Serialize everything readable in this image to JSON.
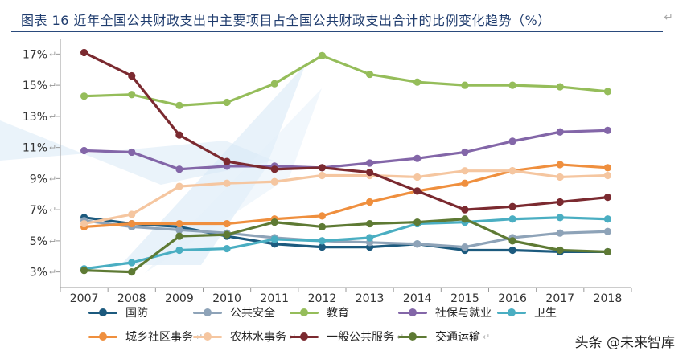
{
  "title": "图表  16  近年全国公共财政支出中主要项目占全国公共财政支出合计的比例变化趋势（%）",
  "watermark": "头条 @未来智库",
  "chart_data": {
    "type": "line",
    "x": [
      "2007",
      "2008",
      "2009",
      "2010",
      "2011",
      "2012",
      "2013",
      "2014",
      "2015",
      "2016",
      "2017",
      "2018"
    ],
    "ylim": [
      2,
      18
    ],
    "yticks": [
      3,
      5,
      7,
      9,
      11,
      13,
      15,
      17
    ],
    "ytick_labels": [
      "3%",
      "5%",
      "7%",
      "9%",
      "11%",
      "13%",
      "15%",
      "17%"
    ],
    "legend_placement": "bottom",
    "grid": false,
    "series": [
      {
        "name": "国防",
        "color": "#1c5a7e",
        "values": [
          6.5,
          6.1,
          5.9,
          5.3,
          4.8,
          4.6,
          4.6,
          4.8,
          4.4,
          4.4,
          4.3,
          4.3
        ]
      },
      {
        "name": "公共安全",
        "color": "#8ea3b8",
        "values": [
          6.3,
          5.9,
          5.7,
          5.5,
          5.2,
          5.0,
          4.9,
          4.8,
          4.6,
          5.2,
          5.5,
          5.6
        ]
      },
      {
        "name": "教育",
        "color": "#95bd5a",
        "values": [
          14.3,
          14.4,
          13.7,
          13.9,
          15.1,
          16.9,
          15.7,
          15.2,
          15.0,
          15.0,
          14.9,
          14.6
        ]
      },
      {
        "name": "社保与就业",
        "color": "#8366a8",
        "values": [
          10.8,
          10.7,
          9.6,
          9.8,
          9.8,
          9.7,
          10.0,
          10.3,
          10.7,
          11.4,
          12.0,
          12.1
        ]
      },
      {
        "name": "卫生",
        "color": "#4aaec2",
        "values": [
          3.2,
          3.6,
          4.4,
          4.5,
          5.1,
          5.0,
          5.2,
          6.1,
          6.2,
          6.4,
          6.5,
          6.4
        ]
      },
      {
        "name": "城乡社区事务",
        "color": "#ef8f3e",
        "values": [
          5.9,
          6.1,
          6.1,
          6.1,
          6.4,
          6.6,
          7.5,
          8.2,
          8.7,
          9.5,
          9.9,
          9.7
        ]
      },
      {
        "name": "农林水事务",
        "color": "#f5c6a0",
        "values": [
          6.1,
          6.7,
          8.5,
          8.7,
          8.8,
          9.2,
          9.2,
          9.1,
          9.5,
          9.5,
          9.1,
          9.2
        ]
      },
      {
        "name": "一般公共服务",
        "color": "#7b2a30",
        "values": [
          17.1,
          15.6,
          11.8,
          10.1,
          9.6,
          9.7,
          9.4,
          8.2,
          7.0,
          7.2,
          7.5,
          7.8
        ]
      },
      {
        "name": "交通运输",
        "color": "#5e7a34",
        "values": [
          3.1,
          3.0,
          5.3,
          5.4,
          6.2,
          5.9,
          6.1,
          6.2,
          6.4,
          5.0,
          4.4,
          4.3
        ]
      }
    ]
  }
}
